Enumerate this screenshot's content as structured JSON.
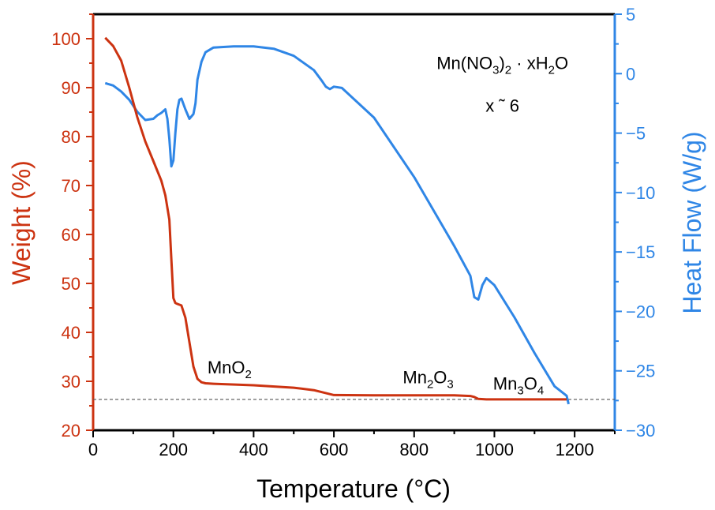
{
  "chart_data": {
    "type": "line",
    "xlabel": "Temperature (°C)",
    "ylabel_left": "Weight (%)",
    "ylabel_right": "Heat Flow (W/g)",
    "xlim": [
      0,
      1300
    ],
    "ylim_left": [
      20,
      105
    ],
    "ylim_right": [
      -30,
      5
    ],
    "xticks": [
      0,
      200,
      400,
      600,
      800,
      1000,
      1200
    ],
    "yticks_left": [
      20,
      30,
      40,
      50,
      60,
      70,
      80,
      90,
      100
    ],
    "yticks_right": [
      5,
      0,
      -5,
      -10,
      -15,
      -20,
      -25,
      -30
    ],
    "tick_labels_right": [
      "5",
      "0",
      "−5",
      "−10",
      "−15",
      "−20",
      "−25",
      "−30"
    ],
    "colors": {
      "weight": "#cc3311",
      "heat": "#2f86e6",
      "frame": "#000000",
      "refline": "#555555"
    },
    "reference_line": {
      "axis": "left",
      "y": 26.3
    },
    "series": [
      {
        "name": "Weight",
        "axis": "left",
        "color": "#cc3311",
        "x": [
          30,
          50,
          70,
          90,
          110,
          130,
          150,
          170,
          180,
          190,
          195,
          200,
          205,
          210,
          220,
          230,
          240,
          250,
          260,
          270,
          280,
          300,
          400,
          500,
          550,
          580,
          600,
          700,
          800,
          900,
          940,
          950,
          960,
          980,
          1000,
          1100,
          1180
        ],
        "y": [
          100.2,
          98.5,
          95.5,
          90,
          84,
          79,
          75,
          71,
          68,
          63,
          55,
          47,
          46,
          45.8,
          45.5,
          43,
          38,
          33,
          30.5,
          29.8,
          29.6,
          29.5,
          29.2,
          28.7,
          28.2,
          27.6,
          27.2,
          27.15,
          27.15,
          27.15,
          27.0,
          26.8,
          26.4,
          26.3,
          26.3,
          26.3,
          26.3
        ]
      },
      {
        "name": "Heat Flow",
        "axis": "right",
        "color": "#2f86e6",
        "x": [
          30,
          50,
          70,
          90,
          110,
          130,
          150,
          160,
          170,
          180,
          185,
          190,
          195,
          200,
          205,
          210,
          215,
          220,
          230,
          240,
          250,
          255,
          260,
          270,
          280,
          300,
          350,
          400,
          450,
          500,
          550,
          570,
          580,
          590,
          600,
          620,
          700,
          800,
          900,
          940,
          950,
          960,
          970,
          980,
          1000,
          1050,
          1100,
          1150,
          1180,
          1185
        ],
        "y": [
          -0.8,
          -1.0,
          -1.5,
          -2.2,
          -3.2,
          -3.9,
          -3.8,
          -3.5,
          -3.3,
          -3.0,
          -3.8,
          -5.5,
          -7.8,
          -7.3,
          -5.0,
          -3.0,
          -2.2,
          -2.1,
          -3.0,
          -3.8,
          -3.4,
          -2.5,
          -0.5,
          1.0,
          1.8,
          2.2,
          2.3,
          2.3,
          2.1,
          1.5,
          0.3,
          -0.6,
          -1.1,
          -1.3,
          -1.1,
          -1.2,
          -3.7,
          -8.7,
          -14.5,
          -17.0,
          -18.8,
          -19.0,
          -17.8,
          -17.2,
          -17.8,
          -20.5,
          -23.5,
          -26.3,
          -27.1,
          -27.8
        ]
      }
    ],
    "annotations": [
      {
        "text": "MnO2",
        "x": 340,
        "y_left": 31.6
      },
      {
        "text": "Mn2O3",
        "x": 835,
        "y_left": 29.6
      },
      {
        "text": "Mn3O4",
        "x": 1060,
        "y_left": 28.3
      }
    ],
    "sample_label": {
      "formula": "Mn(NO3)2 · xH2O",
      "x_line": "x ˜ 6"
    }
  }
}
